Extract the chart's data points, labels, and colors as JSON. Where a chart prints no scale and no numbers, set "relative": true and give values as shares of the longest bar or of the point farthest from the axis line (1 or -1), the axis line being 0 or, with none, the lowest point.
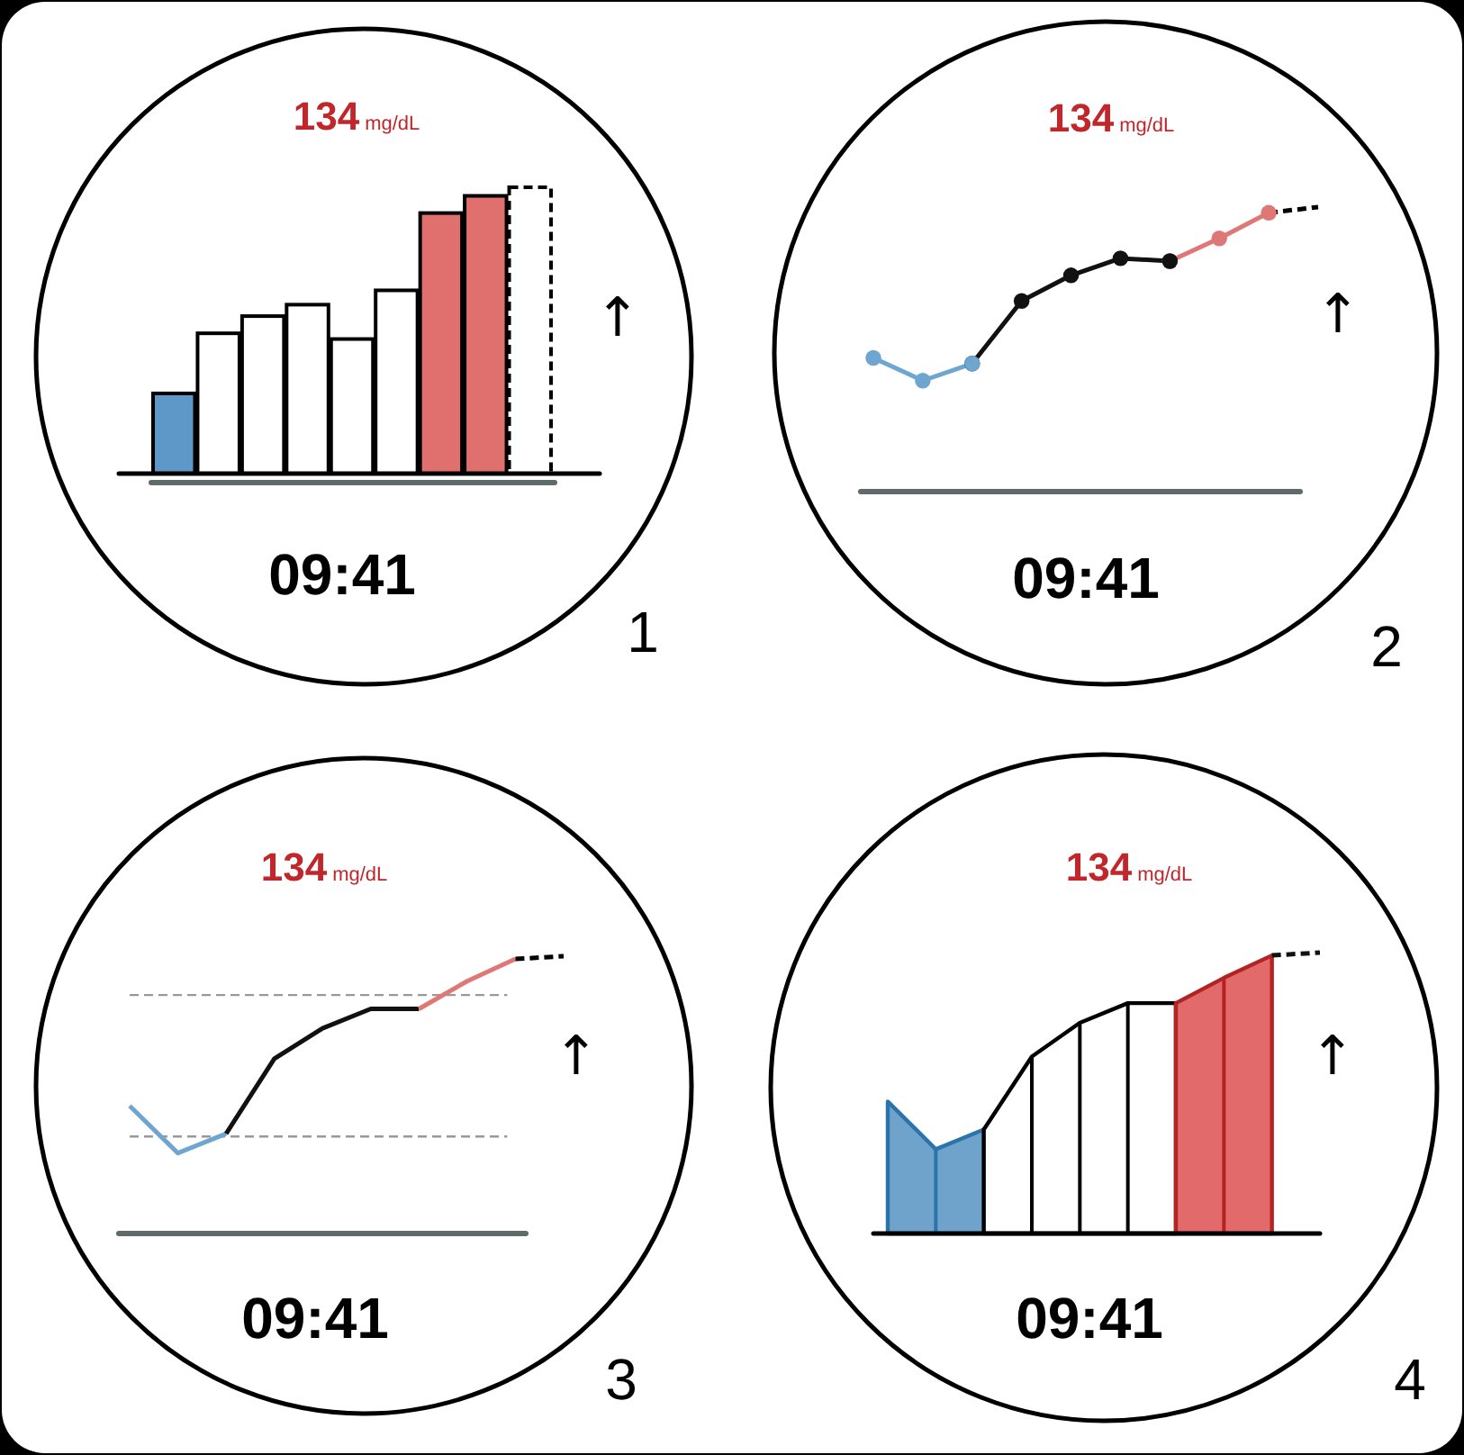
{
  "chart_data": [
    {
      "type": "bar",
      "relative": true,
      "stacked": true,
      "title": "134",
      "subtitle": "mg/dL",
      "annotations": [
        "09:41",
        "↑",
        "1"
      ],
      "categories": [
        null,
        null,
        null,
        null,
        null,
        null,
        null,
        null,
        null
      ],
      "series": [
        {
          "color": "#000000",
          "colors": [
            "#5e98c8",
            "#ffffff",
            "#ffffff",
            "#ffffff",
            "#ffffff",
            "#ffffff",
            "#e0706e",
            "#e0706e",
            null
          ],
          "values": [
            0.28,
            0.49,
            0.55,
            0.59,
            0.47,
            0.64,
            0.91,
            0.97,
            null
          ]
        },
        {
          "color": "#ffffff",
          "line_style": "dashed",
          "values": [
            null,
            null,
            null,
            null,
            null,
            null,
            null,
            null,
            1.0
          ]
        }
      ]
    },
    {
      "type": "line",
      "relative": true,
      "marker": "circle",
      "title": "134",
      "subtitle": "mg/dL",
      "annotations": [
        "09:41",
        "↑",
        "2"
      ],
      "categories": [
        null,
        null,
        null,
        null,
        null,
        null,
        null,
        null,
        null,
        null
      ],
      "series": [
        {
          "color": "#e07777",
          "values": [
            null,
            null,
            null,
            null,
            null,
            null,
            0.81,
            0.89,
            0.98,
            null
          ]
        },
        {
          "color": "#111111",
          "values": [
            null,
            null,
            0.45,
            0.67,
            0.76,
            0.82,
            0.81,
            null,
            null,
            null
          ]
        },
        {
          "color": "#6ea6cf",
          "values": [
            0.47,
            0.39,
            0.45,
            null,
            null,
            null,
            null,
            null,
            null,
            null
          ]
        },
        {
          "color": "#000000",
          "line_style": "dashed",
          "marker": "none",
          "values": [
            null,
            null,
            null,
            null,
            null,
            null,
            null,
            null,
            0.98,
            1.0
          ]
        }
      ]
    },
    {
      "type": "line",
      "relative": true,
      "title": "134",
      "subtitle": "mg/dL",
      "annotations": [
        "09:41",
        "↑",
        "3"
      ],
      "categories": [
        null,
        null,
        null,
        null,
        null,
        null,
        null,
        null,
        null,
        null
      ],
      "series": [
        {
          "color": "#6ea6cf",
          "values": [
            0.46,
            0.29,
            0.36,
            null,
            null,
            null,
            null,
            null,
            null,
            null
          ]
        },
        {
          "color": "#111111",
          "values": [
            null,
            null,
            0.36,
            0.63,
            0.74,
            0.81,
            0.81,
            null,
            null,
            null
          ]
        },
        {
          "color": "#e07777",
          "values": [
            null,
            null,
            null,
            null,
            null,
            null,
            0.81,
            0.91,
            0.99,
            null
          ]
        },
        {
          "color": "#000000",
          "line_style": "dashed",
          "values": [
            null,
            null,
            null,
            null,
            null,
            null,
            null,
            null,
            0.99,
            1.0
          ]
        }
      ],
      "ref_lines": [
        {
          "axis": "y",
          "value": 0.86,
          "color": "#999999",
          "line_style": "dashed"
        },
        {
          "axis": "y",
          "value": 0.35,
          "color": "#999999",
          "line_style": "dashed"
        }
      ]
    },
    {
      "type": "area",
      "relative": true,
      "title": "134",
      "subtitle": "mg/dL",
      "annotations": [
        "09:41",
        "↑",
        "4"
      ],
      "categories": [
        null,
        null,
        null,
        null,
        null,
        null,
        null,
        null,
        null,
        null
      ],
      "series": [
        {
          "color": "#6fa3cc",
          "values": [
            0.47,
            0.3,
            0.37,
            null,
            null,
            null,
            null,
            null,
            null,
            null
          ]
        },
        {
          "color": "#ffffff",
          "values": [
            null,
            null,
            0.37,
            0.63,
            0.75,
            0.82,
            0.82,
            null,
            null,
            null
          ]
        },
        {
          "color": "#e26a6a",
          "values": [
            null,
            null,
            null,
            null,
            null,
            null,
            0.82,
            0.91,
            0.99,
            null
          ]
        },
        {
          "type": "line",
          "color": "#111111",
          "line_style": "dashed",
          "values": [
            null,
            null,
            null,
            null,
            null,
            null,
            null,
            null,
            0.99,
            1.0
          ]
        }
      ]
    }
  ]
}
